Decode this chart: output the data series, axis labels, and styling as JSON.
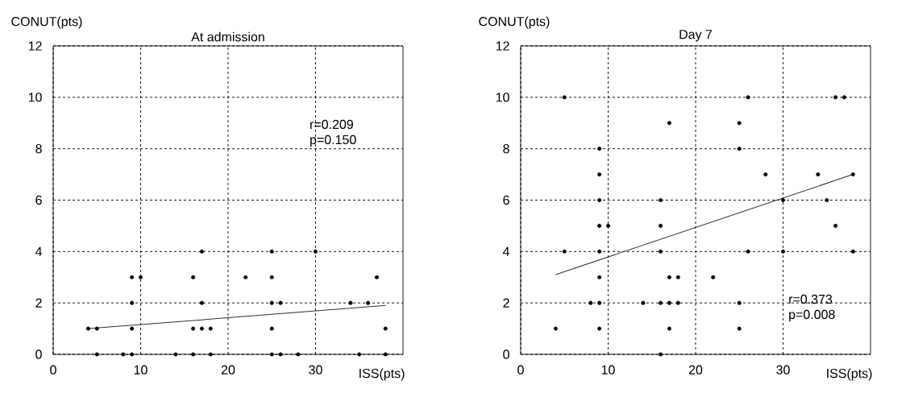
{
  "chart_data": [
    {
      "type": "scatter",
      "title": "At admission",
      "xlabel": "ISS(pts)",
      "ylabel": "CONUT(pts)",
      "xlim": [
        0,
        40
      ],
      "ylim": [
        0,
        12
      ],
      "xticks": [
        0,
        10,
        20,
        30
      ],
      "yticks": [
        0,
        2,
        4,
        6,
        8,
        10,
        12
      ],
      "grid": true,
      "marker": "circle",
      "annotations": [
        "r=0.209",
        "p=0.150"
      ],
      "series": [
        {
          "color": "#000000",
          "x": [
            5,
            8,
            9,
            14,
            16,
            18,
            25,
            26,
            28,
            35,
            38,
            4,
            5,
            9,
            16,
            17,
            18,
            25,
            38,
            9,
            17,
            25,
            26,
            34,
            36,
            9,
            10,
            16,
            22,
            25,
            37,
            17,
            25,
            30
          ],
          "values": [
            0,
            0,
            0,
            0,
            0,
            0,
            0,
            0,
            0,
            0,
            0,
            1,
            1,
            1,
            1,
            1,
            1,
            1,
            1,
            2,
            2,
            2,
            2,
            2,
            2,
            3,
            3,
            3,
            3,
            3,
            3,
            4,
            4,
            4
          ]
        },
        {
          "type": "line",
          "marker": "none",
          "color": "#333333",
          "x": [
            4,
            38
          ],
          "values": [
            1.0,
            1.9
          ]
        }
      ]
    },
    {
      "type": "scatter",
      "title": "Day 7",
      "xlabel": "ISS(pts)",
      "ylabel": "CONUT(pts)",
      "xlim": [
        0,
        40
      ],
      "ylim": [
        0,
        12
      ],
      "xticks": [
        0,
        10,
        20,
        30
      ],
      "yticks": [
        0,
        2,
        4,
        6,
        8,
        10,
        12
      ],
      "grid": true,
      "marker": "circle",
      "annotations": [
        "r=0.373",
        "p=0.008"
      ],
      "series": [
        {
          "color": "#000000",
          "x": [
            5,
            26,
            36,
            37,
            17,
            25,
            9,
            25,
            9,
            28,
            34,
            38,
            9,
            16,
            30,
            35,
            9,
            10,
            16,
            36,
            5,
            9,
            16,
            26,
            30,
            38,
            9,
            17,
            18,
            22,
            8,
            9,
            14,
            16,
            17,
            18,
            25,
            4,
            9,
            17,
            25,
            16
          ],
          "values": [
            10,
            10,
            10,
            10,
            9,
            9,
            8,
            8,
            7,
            7,
            7,
            7,
            6,
            6,
            6,
            6,
            5,
            5,
            5,
            5,
            4,
            4,
            4,
            4,
            4,
            4,
            3,
            3,
            3,
            3,
            2,
            2,
            2,
            2,
            2,
            2,
            2,
            1,
            1,
            1,
            1,
            0
          ]
        },
        {
          "type": "line",
          "marker": "none",
          "color": "#333333",
          "x": [
            4,
            38
          ],
          "values": [
            3.1,
            7.0
          ]
        }
      ]
    }
  ]
}
